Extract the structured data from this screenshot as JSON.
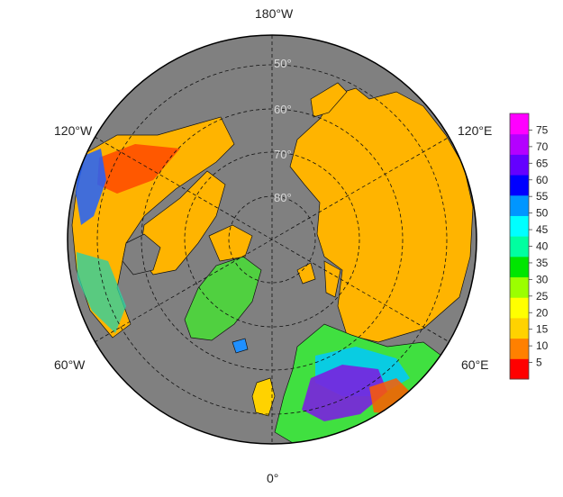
{
  "map": {
    "projection": "north-polar-stereographic",
    "lon_labels": [
      {
        "lon": 180,
        "text": "180°W"
      },
      {
        "lon": -120,
        "text": "120°W"
      },
      {
        "lon": 120,
        "text": "120°E"
      },
      {
        "lon": -60,
        "text": "60°W"
      },
      {
        "lon": 60,
        "text": "60°E"
      },
      {
        "lon": 0,
        "text": "0°"
      }
    ],
    "lat_labels": [
      {
        "lat": 50,
        "text": "50°"
      },
      {
        "lat": 60,
        "text": "60°"
      },
      {
        "lat": 70,
        "text": "70°"
      },
      {
        "lat": 80,
        "text": "80°"
      }
    ],
    "background_color": "#808080"
  },
  "colorbar": {
    "ticks": [
      "75",
      "70",
      "65",
      "60",
      "55",
      "50",
      "45",
      "40",
      "35",
      "30",
      "25",
      "20",
      "15",
      "10",
      "5"
    ],
    "min": 0,
    "max": 80,
    "colors": [
      "#ff0000",
      "#ff8000",
      "#ffd200",
      "#ffff00",
      "#9bff00",
      "#00e600",
      "#00ffa0",
      "#00ffff",
      "#0096ff",
      "#0000ff",
      "#6400ff",
      "#b400ff",
      "#ff00ff"
    ]
  }
}
